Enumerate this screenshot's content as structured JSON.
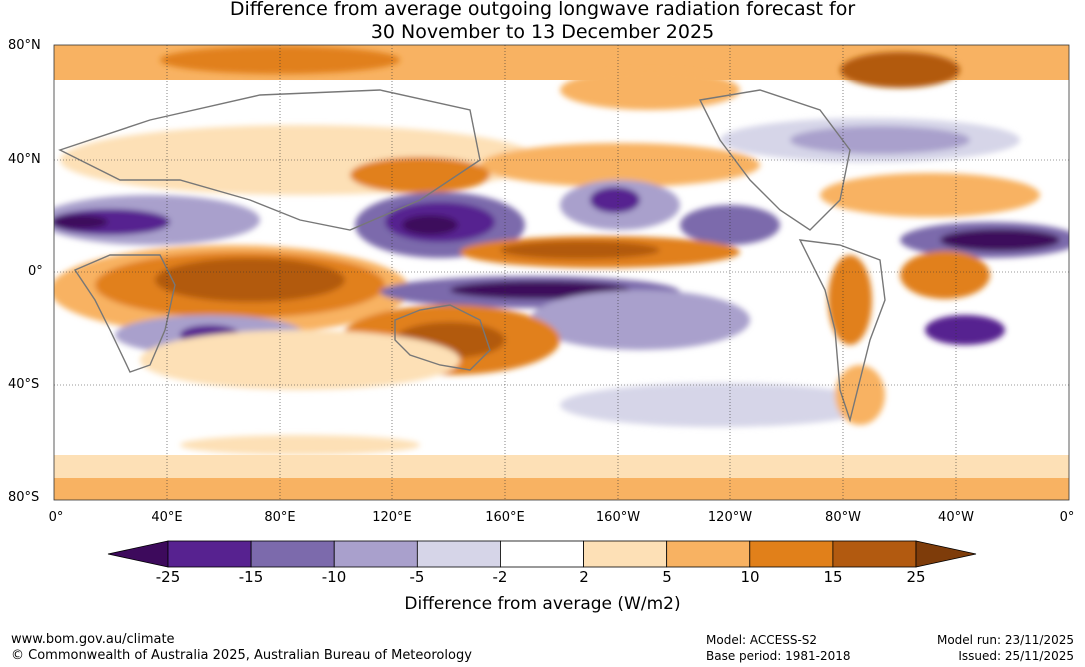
{
  "title_line1": "Difference from average outgoing longwave radiation forecast for",
  "title_line2": "30 November to 13 December 2025",
  "lat_labels": [
    "80°N",
    "40°N",
    "0°",
    "40°S",
    "80°S"
  ],
  "lon_labels": [
    "0°",
    "40°E",
    "80°E",
    "120°E",
    "160°E",
    "160°W",
    "120°W",
    "80°W",
    "40°W",
    "0°"
  ],
  "colorbar": {
    "ticks": [
      "-25",
      "-15",
      "-10",
      "-5",
      "-2",
      "2",
      "5",
      "10",
      "15",
      "25"
    ],
    "colors": [
      "#3d0a5c",
      "#572290",
      "#7c6aac",
      "#a9a0cc",
      "#d6d5e8",
      "#ffffff",
      "#fde0b6",
      "#f8b262",
      "#e1801a",
      "#b25a10",
      "#7e3c0a"
    ],
    "label": "Difference from average (W/m2)"
  },
  "footer": {
    "url": "www.bom.gov.au/climate",
    "copyright": "© Commonwealth of Australia 2025, Australian Bureau of Meteorology",
    "model": "Model: ACCESS-S2",
    "base_period": "Base period: 1981-2018",
    "model_run": "Model run: 23/11/2025",
    "issued": "Issued: 25/11/2025"
  },
  "map_colors": {
    "land_outline": "#777777",
    "grid": "#333333"
  }
}
